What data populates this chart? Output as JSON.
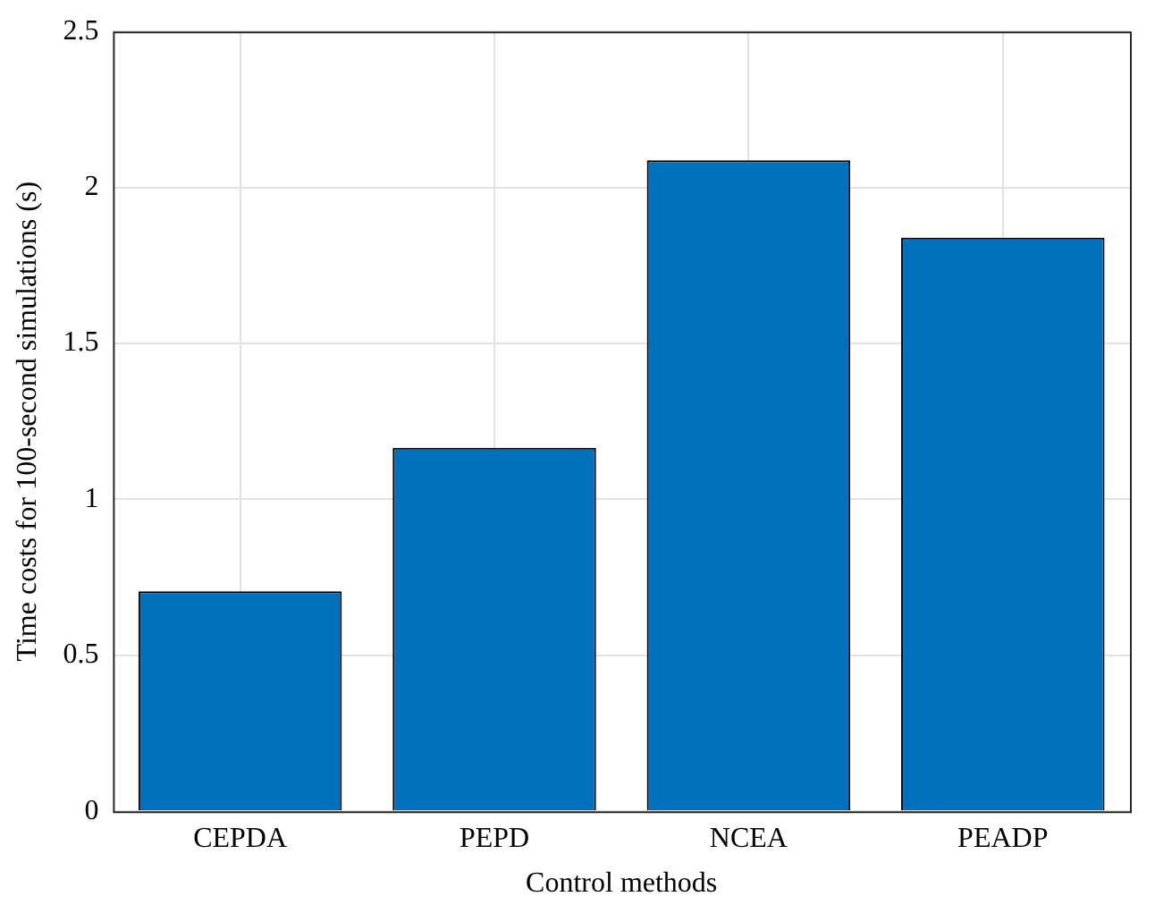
{
  "chart_data": {
    "type": "bar",
    "xlabel": "Control methods",
    "ylabel": "Time costs for 100-second simulations (s)",
    "categories": [
      "CEPDA",
      "PEPD",
      "NCEA",
      "PEADP"
    ],
    "values": [
      0.705,
      1.165,
      2.087,
      1.839
    ],
    "color": "#0072bd",
    "ylim": [
      0,
      2.5
    ],
    "yticks": [
      0,
      0.5,
      1,
      1.5,
      2,
      2.5
    ],
    "grid": true,
    "legend": false
  }
}
